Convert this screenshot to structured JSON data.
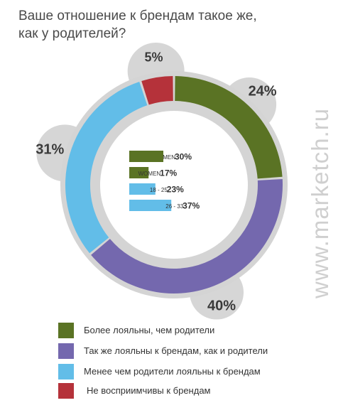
{
  "title": {
    "line1": "Ваше отношение к брендам такое же,",
    "line2": "как у родителей?"
  },
  "watermark": "www.marketch.ru",
  "colors": {
    "green": "#5a7324",
    "purple": "#7468ae",
    "light_blue": "#62bde8",
    "red": "#b5323a",
    "bubble": "#d6d6d6"
  },
  "chart_data": [
    {
      "type": "pie",
      "variant": "donut",
      "categories": [
        "Более лояльны, чем родители",
        "Так же лояльны к брендам, как и родители",
        "Менее чем родители лояльны к брендам",
        "Не восприимчивы к брендам"
      ],
      "values": [
        24,
        40,
        31,
        5
      ],
      "labels": [
        "24%",
        "40%",
        "31%",
        "5%"
      ],
      "colors": [
        "#5a7324",
        "#7468ae",
        "#62bde8",
        "#b5323a"
      ],
      "legend_position": "bottom"
    },
    {
      "type": "bar",
      "orientation": "horizontal",
      "categories": [
        "MEN",
        "WOMEN",
        "18 - 25",
        "26 - 33"
      ],
      "values": [
        30,
        17,
        23,
        37
      ],
      "labels": [
        "30%",
        "17%",
        "23%",
        "37%"
      ],
      "colors": [
        "#5a7324",
        "#5a7324",
        "#62bde8",
        "#62bde8"
      ]
    }
  ]
}
